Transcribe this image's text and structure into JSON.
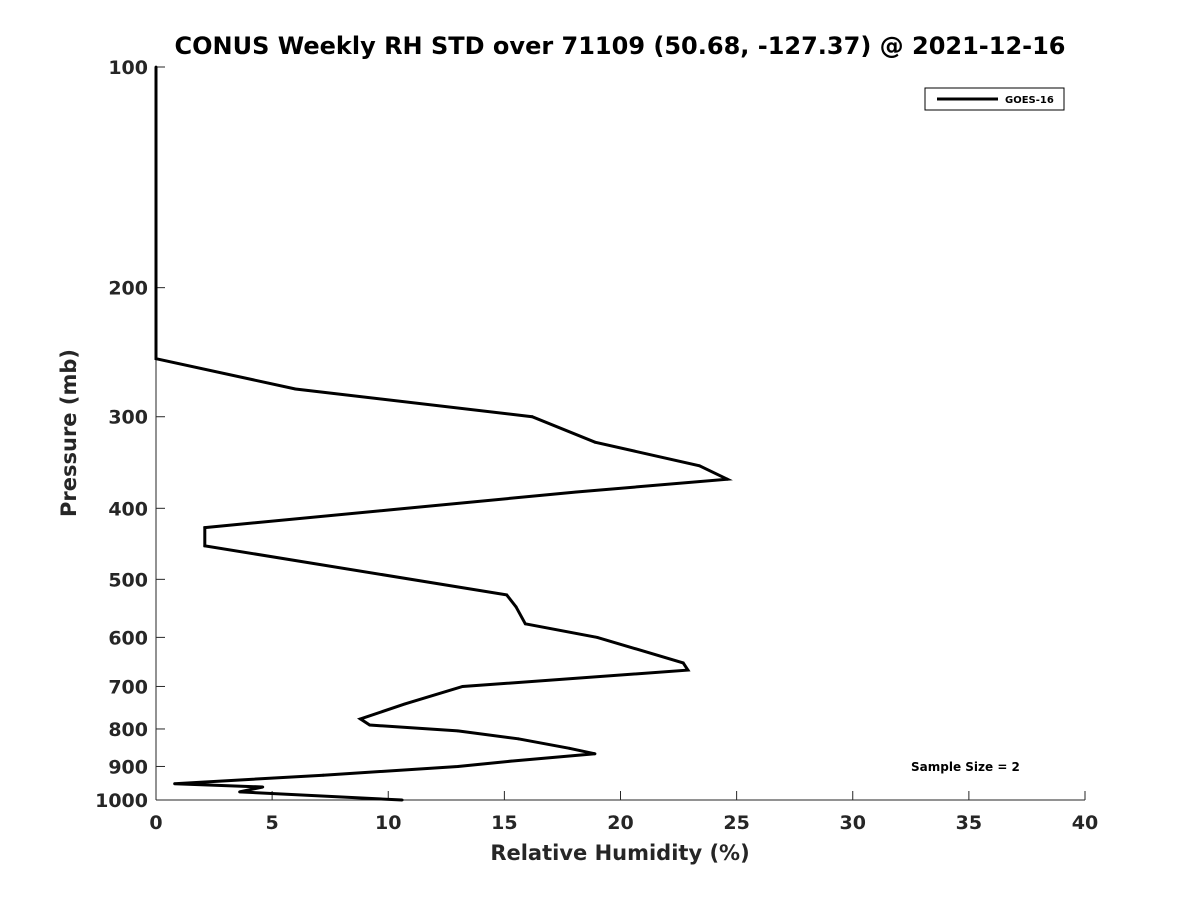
{
  "chart_data": {
    "type": "line",
    "title": "CONUS Weekly RH STD over 71109 (50.68, -127.37) @ 2021-12-16",
    "xlabel": "Relative Humidity (%)",
    "ylabel": "Pressure (mb)",
    "xlim": [
      0,
      40
    ],
    "ylim": [
      100,
      1000
    ],
    "y_scale": "log",
    "y_reversed": true,
    "grid": false,
    "legend_position": "top-right",
    "x_ticks": [
      0,
      5,
      10,
      15,
      20,
      25,
      30,
      35,
      40
    ],
    "y_ticks": [
      100,
      200,
      300,
      400,
      500,
      600,
      700,
      800,
      900,
      1000
    ],
    "series": [
      {
        "name": "GOES-16",
        "color": "#000000",
        "points": [
          {
            "x": 0,
            "y": 100
          },
          {
            "x": 0,
            "y": 150
          },
          {
            "x": 0,
            "y": 200
          },
          {
            "x": 0,
            "y": 250
          },
          {
            "x": 6.0,
            "y": 275
          },
          {
            "x": 16.2,
            "y": 300
          },
          {
            "x": 18.9,
            "y": 325
          },
          {
            "x": 23.4,
            "y": 350
          },
          {
            "x": 24.6,
            "y": 365
          },
          {
            "x": 18.1,
            "y": 380
          },
          {
            "x": 2.1,
            "y": 425
          },
          {
            "x": 2.1,
            "y": 450
          },
          {
            "x": 15.1,
            "y": 525
          },
          {
            "x": 15.5,
            "y": 545
          },
          {
            "x": 15.9,
            "y": 575
          },
          {
            "x": 19.0,
            "y": 600
          },
          {
            "x": 22.7,
            "y": 650
          },
          {
            "x": 22.9,
            "y": 665
          },
          {
            "x": 13.2,
            "y": 700
          },
          {
            "x": 10.7,
            "y": 740
          },
          {
            "x": 8.8,
            "y": 775
          },
          {
            "x": 9.2,
            "y": 790
          },
          {
            "x": 13.0,
            "y": 805
          },
          {
            "x": 15.6,
            "y": 825
          },
          {
            "x": 17.8,
            "y": 850
          },
          {
            "x": 18.9,
            "y": 865
          },
          {
            "x": 15.3,
            "y": 885
          },
          {
            "x": 13.0,
            "y": 900
          },
          {
            "x": 7.2,
            "y": 925
          },
          {
            "x": 0.8,
            "y": 950
          },
          {
            "x": 4.6,
            "y": 960
          },
          {
            "x": 3.6,
            "y": 975
          },
          {
            "x": 10.6,
            "y": 1000
          }
        ]
      }
    ]
  },
  "legend": {
    "entries": [
      "GOES-16"
    ]
  },
  "annotation": {
    "sample_size": "Sample Size = 2"
  }
}
